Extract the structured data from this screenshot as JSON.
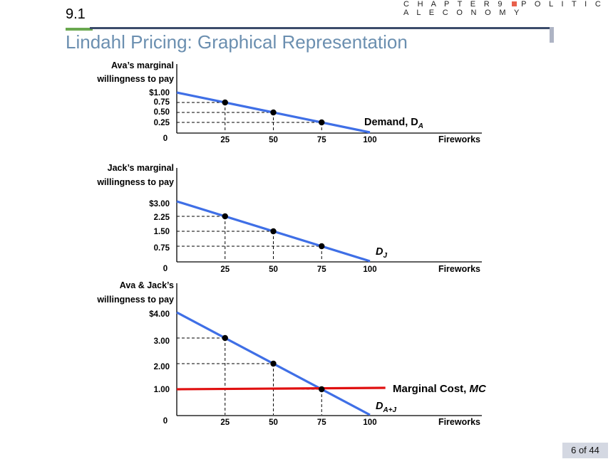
{
  "header": {
    "chapter_label": "C H A P T E R 9",
    "chapter_title": "P O L I T I C A L E C O N O M Y",
    "section_number": "9.1",
    "title": "Lindahl Pricing: Graphical Representation",
    "page_indicator": "6 of 44",
    "accent_color": "#6aa84f",
    "title_color": "#6b8fb0"
  },
  "chart_data": [
    {
      "type": "line",
      "ylabel_line1": "Ava’s marginal",
      "ylabel_line2": "willingness to pay",
      "xlabel": "Fireworks",
      "x_ticks": [
        "25",
        "50",
        "75",
        "100"
      ],
      "y_ticks": [
        "$1.00",
        "0.75",
        "0.50",
        "0.25"
      ],
      "origin_label": "0",
      "xlim": [
        0,
        100
      ],
      "ylim": [
        0,
        1
      ],
      "series": [
        {
          "name": "Demand, D_A",
          "label_main": "Demand, D",
          "label_sub": "A",
          "color": "#3f6fe6",
          "x": [
            0,
            100
          ],
          "y": [
            1.0,
            0.0
          ]
        }
      ],
      "points": [
        {
          "x": 25,
          "y": 0.75
        },
        {
          "x": 50,
          "y": 0.5
        },
        {
          "x": 75,
          "y": 0.25
        }
      ]
    },
    {
      "type": "line",
      "ylabel_line1": "Jack’s marginal",
      "ylabel_line2": "willingness to pay",
      "xlabel": "Fireworks",
      "x_ticks": [
        "25",
        "50",
        "75",
        "100"
      ],
      "y_ticks": [
        "$3.00",
        "2.25",
        "1.50",
        "0.75"
      ],
      "origin_label": "0",
      "xlim": [
        0,
        100
      ],
      "ylim": [
        0,
        3
      ],
      "series": [
        {
          "name": "D_J",
          "label_main": "D",
          "label_sub": "J",
          "color": "#3f6fe6",
          "x": [
            0,
            100
          ],
          "y": [
            3.0,
            0.0
          ]
        }
      ],
      "points": [
        {
          "x": 25,
          "y": 2.25
        },
        {
          "x": 50,
          "y": 1.5
        },
        {
          "x": 75,
          "y": 0.75
        }
      ]
    },
    {
      "type": "line",
      "ylabel_line1": "Ava & Jack’s",
      "ylabel_line2": "willingness to pay",
      "xlabel": "Fireworks",
      "x_ticks": [
        "25",
        "50",
        "75",
        "100"
      ],
      "y_ticks": [
        "$4.00",
        "3.00",
        "2.00",
        "1.00"
      ],
      "origin_label": "0",
      "xlim": [
        0,
        100
      ],
      "ylim": [
        0,
        4
      ],
      "series": [
        {
          "name": "D_A+J",
          "label_main": "D",
          "label_sub": "A+J",
          "color": "#3f6fe6",
          "x": [
            0,
            100
          ],
          "y": [
            4.0,
            0.0
          ]
        },
        {
          "name": "Marginal Cost, MC",
          "label_main": "Marginal Cost, ",
          "label_italic": "MC",
          "color": "#e01010",
          "x": [
            0,
            108
          ],
          "y": [
            1.0,
            1.0
          ]
        }
      ],
      "points": [
        {
          "x": 25,
          "y": 3.0
        },
        {
          "x": 50,
          "y": 2.0
        },
        {
          "x": 75,
          "y": 1.0
        }
      ]
    }
  ]
}
